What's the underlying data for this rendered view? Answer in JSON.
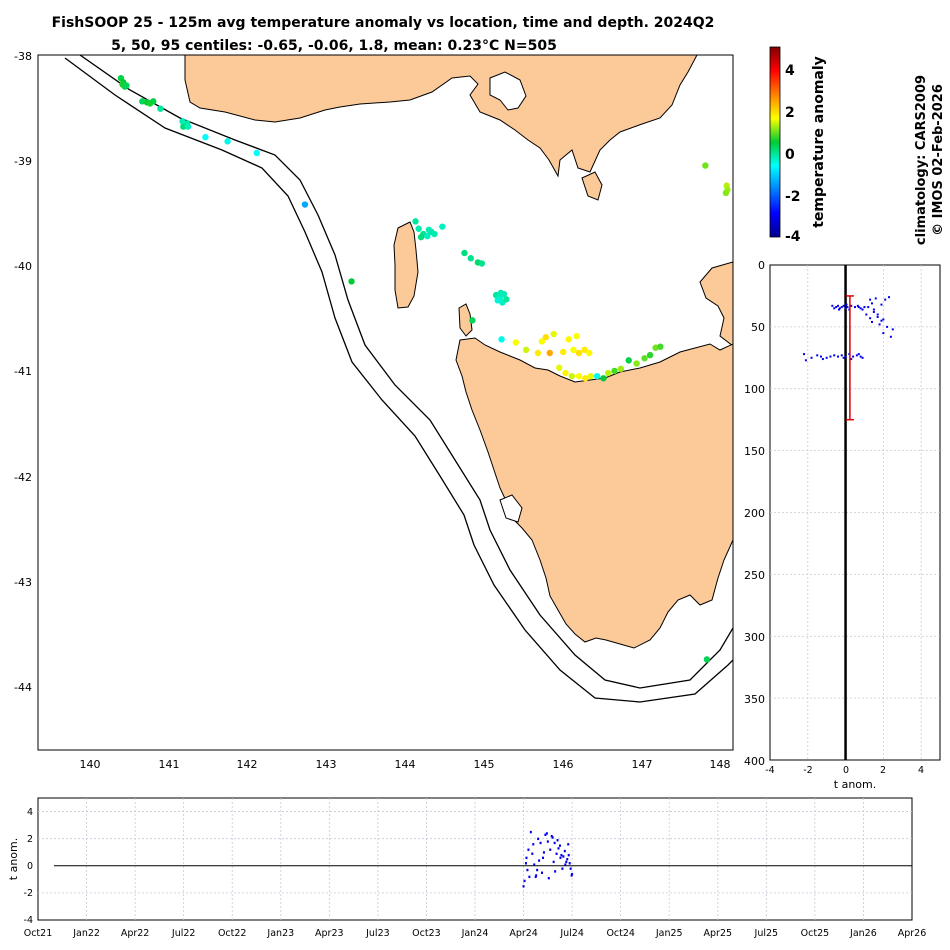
{
  "chart_data": [
    {
      "id": "map",
      "type": "scatter",
      "title": "FishSOOP 25 - 125m avg temperature anomaly vs location, time and depth. 2024Q2",
      "subtitle": "5, 50, 95 centiles: -0.65, -0.06, 1.8, mean: 0.23°C N=505",
      "xlim": [
        139.4,
        148.2
      ],
      "ylim": [
        -44.6,
        -38.0
      ],
      "x_ticks": [
        "140",
        "141",
        "142",
        "143",
        "144",
        "145",
        "146",
        "147",
        "148"
      ],
      "y_ticks": [
        "-38",
        "-39",
        "-40",
        "-41",
        "-42",
        "-43",
        "-44"
      ],
      "colorbar": {
        "label": "temperature anomaly",
        "range": [
          -4,
          5
        ],
        "ticks": [
          "4",
          "2",
          "0",
          "-2",
          "-4"
        ]
      },
      "points": [
        {
          "lon": 140.45,
          "lat": -38.22,
          "anom": 0.4
        },
        {
          "lon": 140.48,
          "lat": -38.26,
          "anom": 0.5
        },
        {
          "lon": 140.5,
          "lat": -38.3,
          "anom": 0.4
        },
        {
          "lon": 140.47,
          "lat": -38.28,
          "anom": 0.6
        },
        {
          "lon": 140.52,
          "lat": -38.29,
          "anom": 0.3
        },
        {
          "lon": 140.72,
          "lat": -38.44,
          "anom": 0.3
        },
        {
          "lon": 140.78,
          "lat": -38.45,
          "anom": 0.5
        },
        {
          "lon": 140.82,
          "lat": -38.46,
          "anom": 0.6
        },
        {
          "lon": 140.86,
          "lat": -38.44,
          "anom": 0.4
        },
        {
          "lon": 140.95,
          "lat": -38.51,
          "anom": -0.1
        },
        {
          "lon": 141.23,
          "lat": -38.63,
          "anom": -0.2
        },
        {
          "lon": 141.26,
          "lat": -38.66,
          "anom": -0.4
        },
        {
          "lon": 141.29,
          "lat": -38.65,
          "anom": -0.1
        },
        {
          "lon": 141.24,
          "lat": -38.68,
          "anom": 0.1
        },
        {
          "lon": 141.3,
          "lat": -38.68,
          "anom": -0.3
        },
        {
          "lon": 141.52,
          "lat": -38.78,
          "anom": -0.6
        },
        {
          "lon": 141.8,
          "lat": -38.82,
          "anom": -0.5
        },
        {
          "lon": 142.17,
          "lat": -38.93,
          "anom": -0.6
        },
        {
          "lon": 142.78,
          "lat": -39.42,
          "anom": -1.4
        },
        {
          "lon": 143.37,
          "lat": -40.15,
          "anom": 0.5
        },
        {
          "lon": 144.18,
          "lat": -39.58,
          "anom": -0.1
        },
        {
          "lon": 144.22,
          "lat": -39.65,
          "anom": -0.2
        },
        {
          "lon": 144.28,
          "lat": -39.7,
          "anom": 0.0
        },
        {
          "lon": 144.33,
          "lat": -39.72,
          "anom": -0.3
        },
        {
          "lon": 144.38,
          "lat": -39.68,
          "anom": -0.1
        },
        {
          "lon": 144.42,
          "lat": -39.7,
          "anom": -0.2
        },
        {
          "lon": 144.25,
          "lat": -39.73,
          "anom": 0.1
        },
        {
          "lon": 144.35,
          "lat": -39.66,
          "anom": -0.2
        },
        {
          "lon": 144.52,
          "lat": -39.63,
          "anom": -0.3
        },
        {
          "lon": 144.8,
          "lat": -39.88,
          "anom": 0.1
        },
        {
          "lon": 144.88,
          "lat": -39.93,
          "anom": 0.0
        },
        {
          "lon": 144.97,
          "lat": -39.97,
          "anom": 0.2
        },
        {
          "lon": 145.02,
          "lat": -39.98,
          "anom": 0.0
        },
        {
          "lon": 145.2,
          "lat": -40.28,
          "anom": -0.1
        },
        {
          "lon": 145.25,
          "lat": -40.3,
          "anom": -0.3
        },
        {
          "lon": 145.3,
          "lat": -40.27,
          "anom": -0.2
        },
        {
          "lon": 145.22,
          "lat": -40.33,
          "anom": -0.4
        },
        {
          "lon": 145.28,
          "lat": -40.35,
          "anom": -0.3
        },
        {
          "lon": 145.33,
          "lat": -40.32,
          "anom": -0.1
        },
        {
          "lon": 145.26,
          "lat": -40.26,
          "anom": -0.2
        },
        {
          "lon": 144.9,
          "lat": -40.52,
          "anom": 0.3
        },
        {
          "lon": 145.27,
          "lat": -40.7,
          "anom": -0.5
        },
        {
          "lon": 145.45,
          "lat": -40.73,
          "anom": 1.6
        },
        {
          "lon": 145.58,
          "lat": -40.8,
          "anom": 1.4
        },
        {
          "lon": 145.73,
          "lat": -40.83,
          "anom": 1.8
        },
        {
          "lon": 145.78,
          "lat": -40.72,
          "anom": 1.6
        },
        {
          "lon": 145.83,
          "lat": -40.68,
          "anom": 1.9
        },
        {
          "lon": 145.93,
          "lat": -40.65,
          "anom": 1.5
        },
        {
          "lon": 145.88,
          "lat": -40.83,
          "anom": 2.4
        },
        {
          "lon": 146.05,
          "lat": -40.82,
          "anom": 1.8
        },
        {
          "lon": 146.12,
          "lat": -40.7,
          "anom": 1.7
        },
        {
          "lon": 146.18,
          "lat": -40.8,
          "anom": 1.6
        },
        {
          "lon": 146.25,
          "lat": -40.83,
          "anom": 1.9
        },
        {
          "lon": 146.32,
          "lat": -40.8,
          "anom": 1.8
        },
        {
          "lon": 146.38,
          "lat": -40.83,
          "anom": 1.7
        },
        {
          "lon": 146.22,
          "lat": -40.67,
          "anom": 1.6
        },
        {
          "lon": 146.0,
          "lat": -40.97,
          "anom": 1.5
        },
        {
          "lon": 146.08,
          "lat": -41.02,
          "anom": 1.7
        },
        {
          "lon": 146.16,
          "lat": -41.05,
          "anom": 1.4
        },
        {
          "lon": 146.25,
          "lat": -41.05,
          "anom": 1.6
        },
        {
          "lon": 146.33,
          "lat": -41.07,
          "anom": 1.8
        },
        {
          "lon": 146.4,
          "lat": -41.05,
          "anom": 1.5
        },
        {
          "lon": 146.48,
          "lat": -41.05,
          "anom": -0.5
        },
        {
          "lon": 146.56,
          "lat": -41.07,
          "anom": 0.5
        },
        {
          "lon": 146.62,
          "lat": -41.02,
          "anom": 1.3
        },
        {
          "lon": 146.7,
          "lat": -41.0,
          "anom": 0.8
        },
        {
          "lon": 146.78,
          "lat": -40.98,
          "anom": 1.2
        },
        {
          "lon": 146.88,
          "lat": -40.9,
          "anom": 0.4
        },
        {
          "lon": 146.98,
          "lat": -40.93,
          "anom": 1.1
        },
        {
          "lon": 147.08,
          "lat": -40.88,
          "anom": 0.9
        },
        {
          "lon": 147.15,
          "lat": -40.85,
          "anom": 0.7
        },
        {
          "lon": 147.22,
          "lat": -40.78,
          "anom": 1.0
        },
        {
          "lon": 147.28,
          "lat": -40.77,
          "anom": 0.8
        },
        {
          "lon": 147.85,
          "lat": -39.05,
          "anom": 1.0
        },
        {
          "lon": 148.12,
          "lat": -39.24,
          "anom": 1.3
        },
        {
          "lon": 148.13,
          "lat": -39.28,
          "anom": 1.2
        },
        {
          "lon": 148.11,
          "lat": -39.31,
          "anom": 1.1
        },
        {
          "lon": 147.87,
          "lat": -43.74,
          "anom": 0.3
        }
      ]
    },
    {
      "id": "depth",
      "type": "scatter",
      "xlabel": "t anom.",
      "xlim": [
        -4,
        5
      ],
      "ylim": [
        400,
        0
      ],
      "x_ticks": [
        "-4",
        "-2",
        "0",
        "2",
        "4"
      ],
      "y_ticks": [
        "0",
        "50",
        "100",
        "150",
        "200",
        "250",
        "300",
        "350",
        "400"
      ],
      "errorbar": {
        "x": 0.23,
        "depth_min": 25,
        "depth_max": 125
      },
      "points": [
        [
          -0.7,
          33
        ],
        [
          -0.5,
          34
        ],
        [
          -0.4,
          33
        ],
        [
          -0.3,
          35
        ],
        [
          -0.2,
          34
        ],
        [
          -0.1,
          33
        ],
        [
          0.0,
          35
        ],
        [
          0.1,
          34
        ],
        [
          0.2,
          36
        ],
        [
          0.3,
          33
        ],
        [
          -0.6,
          35
        ],
        [
          -0.35,
          36
        ],
        [
          0.05,
          32
        ],
        [
          0.5,
          34
        ],
        [
          0.65,
          33
        ],
        [
          0.8,
          35
        ],
        [
          0.9,
          36
        ],
        [
          0.7,
          34
        ],
        [
          1.0,
          34
        ],
        [
          1.3,
          28
        ],
        [
          1.6,
          27
        ],
        [
          2.1,
          28
        ],
        [
          2.3,
          26
        ],
        [
          1.4,
          31
        ],
        [
          1.2,
          34
        ],
        [
          1.9,
          32
        ],
        [
          1.5,
          38
        ],
        [
          1.7,
          40
        ],
        [
          1.3,
          43
        ],
        [
          2.0,
          44
        ],
        [
          1.4,
          46
        ],
        [
          1.8,
          48
        ],
        [
          2.5,
          52
        ],
        [
          2.2,
          50
        ],
        [
          2.0,
          55
        ],
        [
          1.7,
          42
        ],
        [
          1.1,
          40
        ],
        [
          1.5,
          36
        ],
        [
          2.4,
          58
        ],
        [
          1.9,
          45
        ],
        [
          -1.8,
          75
        ],
        [
          -1.5,
          73
        ],
        [
          -1.3,
          74
        ],
        [
          -1.0,
          75
        ],
        [
          -0.8,
          74
        ],
        [
          -0.6,
          73
        ],
        [
          -0.4,
          74
        ],
        [
          -0.2,
          73
        ],
        [
          0.0,
          74
        ],
        [
          0.2,
          72
        ],
        [
          0.4,
          74
        ],
        [
          0.6,
          73
        ],
        [
          0.8,
          74
        ],
        [
          0.9,
          75
        ],
        [
          -2.2,
          72
        ],
        [
          -2.1,
          77
        ],
        [
          -1.2,
          76
        ],
        [
          -0.1,
          75
        ],
        [
          0.3,
          76
        ],
        [
          0.7,
          72
        ]
      ]
    },
    {
      "id": "time",
      "type": "scatter",
      "ylabel": "t anom.",
      "ylim": [
        -4,
        5
      ],
      "y_ticks": [
        "4",
        "2",
        "0",
        "-2",
        "-4"
      ],
      "x_ticks": [
        "Oct21",
        "Jan22",
        "Apr22",
        "Jul22",
        "Oct22",
        "Jan23",
        "Apr23",
        "Jul23",
        "Oct23",
        "Jan24",
        "Apr24",
        "Jul24",
        "Oct24",
        "Jan25",
        "Apr25",
        "Jul25",
        "Oct25",
        "Jan26",
        "Apr26"
      ],
      "points": [
        [
          10.0,
          -1.5
        ],
        [
          10.05,
          0.2
        ],
        [
          10.1,
          1.2
        ],
        [
          10.08,
          -0.3
        ],
        [
          10.15,
          2.5
        ],
        [
          10.2,
          1.6
        ],
        [
          10.22,
          0.1
        ],
        [
          10.25,
          -0.8
        ],
        [
          10.3,
          2.0
        ],
        [
          10.35,
          1.7
        ],
        [
          10.38,
          -0.5
        ],
        [
          10.4,
          0.6
        ],
        [
          10.45,
          2.3
        ],
        [
          10.5,
          1.8
        ],
        [
          10.52,
          -0.9
        ],
        [
          10.55,
          1.2
        ],
        [
          10.6,
          2.1
        ],
        [
          10.62,
          0.3
        ],
        [
          10.65,
          -0.4
        ],
        [
          10.7,
          1.9
        ],
        [
          10.75,
          1.5
        ],
        [
          10.78,
          0.8
        ],
        [
          10.8,
          -0.2
        ],
        [
          10.85,
          1.1
        ],
        [
          10.9,
          0.5
        ],
        [
          10.92,
          1.6
        ],
        [
          10.95,
          0.2
        ],
        [
          11.0,
          -0.6
        ],
        [
          10.12,
          -0.8
        ],
        [
          10.18,
          0.9
        ],
        [
          10.28,
          -0.3
        ],
        [
          10.32,
          0.4
        ],
        [
          10.42,
          1.0
        ],
        [
          10.58,
          2.2
        ],
        [
          10.68,
          0.9
        ],
        [
          10.72,
          1.3
        ],
        [
          10.82,
          0.7
        ],
        [
          10.88,
          0.3
        ],
        [
          10.97,
          -0.2
        ],
        [
          10.02,
          -1.1
        ],
        [
          10.06,
          0.6
        ],
        [
          10.26,
          -0.7
        ],
        [
          10.48,
          2.4
        ],
        [
          10.64,
          1.7
        ],
        [
          10.76,
          0.6
        ],
        [
          10.86,
          0.1
        ],
        [
          10.93,
          0.8
        ],
        [
          10.99,
          -0.7
        ]
      ]
    }
  ],
  "side_text": {
    "climatology": "climatology: CARS2009",
    "copyright": "© IMOS 02-Feb-2026"
  }
}
